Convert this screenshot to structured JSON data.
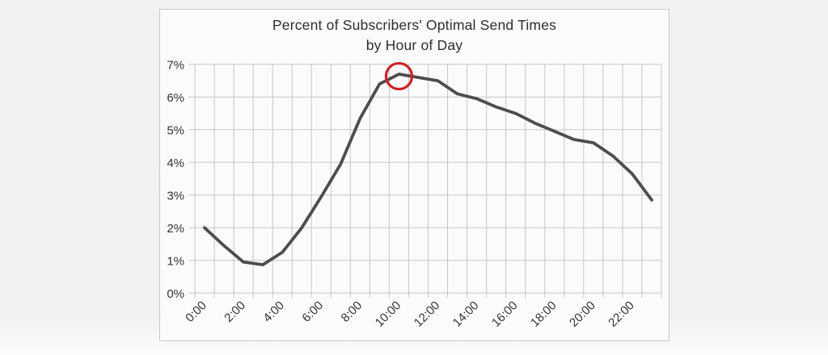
{
  "window": {
    "background_color": "#f1f1f2",
    "panel_background": "#fbfbfb",
    "panel_border_color": "#c8c8c8"
  },
  "chart_data": {
    "type": "line",
    "title": "Percent of Subscribers' Optimal Send Times",
    "subtitle": "by Hour of Day",
    "categories": [
      "0:00",
      "1:00",
      "2:00",
      "3:00",
      "4:00",
      "5:00",
      "6:00",
      "7:00",
      "8:00",
      "9:00",
      "10:00",
      "11:00",
      "12:00",
      "13:00",
      "14:00",
      "15:00",
      "16:00",
      "17:00",
      "18:00",
      "19:00",
      "20:00",
      "21:00",
      "22:00",
      "23:00"
    ],
    "values": [
      2.0,
      1.45,
      0.95,
      0.87,
      1.25,
      2.0,
      2.95,
      3.95,
      5.35,
      6.4,
      6.7,
      6.6,
      6.5,
      6.1,
      5.95,
      5.7,
      5.5,
      5.2,
      4.95,
      4.7,
      4.6,
      4.2,
      3.65,
      2.85
    ],
    "x_tick_labels": [
      "0:00",
      "2:00",
      "4:00",
      "6:00",
      "8:00",
      "10:00",
      "12:00",
      "14:00",
      "16:00",
      "18:00",
      "20:00",
      "22:00"
    ],
    "x_tick_every": 2,
    "y_tick_labels": [
      "0%",
      "1%",
      "2%",
      "3%",
      "4%",
      "5%",
      "6%",
      "7%"
    ],
    "ylim": [
      0,
      7
    ],
    "grid": "both",
    "gridline_color": "#c7c7c7",
    "line_color": "#4d4d4d",
    "label_color": "#333333",
    "legend": "none",
    "annotation": {
      "shape": "circle",
      "category": "10:00",
      "value": 6.7,
      "color": "#cc2127"
    }
  }
}
